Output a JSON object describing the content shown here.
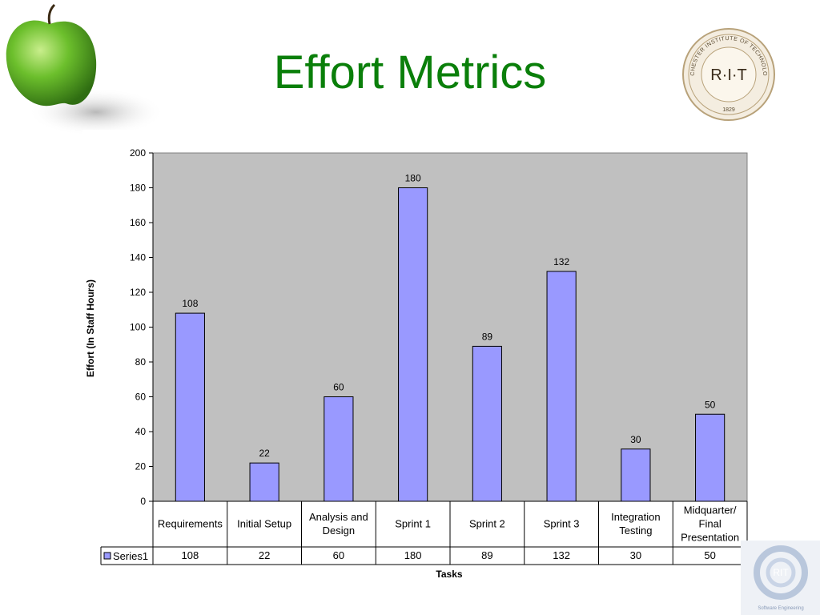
{
  "slide": {
    "title": "Effort Metrics"
  },
  "chart_data": {
    "type": "bar",
    "categories": [
      "Requirements",
      "Initial Setup",
      "Analysis and Design",
      "Sprint 1",
      "Sprint 2",
      "Sprint 3",
      "Integration Testing",
      "Midquarter/ Final Presentation"
    ],
    "category_lines": [
      [
        "Requirements"
      ],
      [
        "Initial Setup"
      ],
      [
        "Analysis and",
        "Design"
      ],
      [
        "Sprint 1"
      ],
      [
        "Sprint 2"
      ],
      [
        "Sprint 3"
      ],
      [
        "Integration",
        "Testing"
      ],
      [
        "Midquarter/",
        "Final",
        "Presentation"
      ]
    ],
    "series": [
      {
        "name": "Series1",
        "values": [
          108,
          22,
          60,
          180,
          89,
          132,
          30,
          50
        ]
      }
    ],
    "xlabel": "Tasks",
    "ylabel": "Effort (In Staff Hours)",
    "ylim": [
      0,
      200
    ],
    "yticks": [
      0,
      20,
      40,
      60,
      80,
      100,
      120,
      140,
      160,
      180,
      200
    ],
    "data_labels": true,
    "data_table": true,
    "grid": false,
    "colors": {
      "bar": "#9999ff",
      "plot_bg": "#c0c0c0",
      "title": "#0a7f0a"
    }
  },
  "decor": {
    "seal_text": "ROCHESTER INSTITUTE OF TECHNOLOGY",
    "seal_mark": "R·I·T",
    "seal_year": "1829",
    "se_logo_text": "Software Engineering",
    "se_logo_mark": "RIT"
  }
}
